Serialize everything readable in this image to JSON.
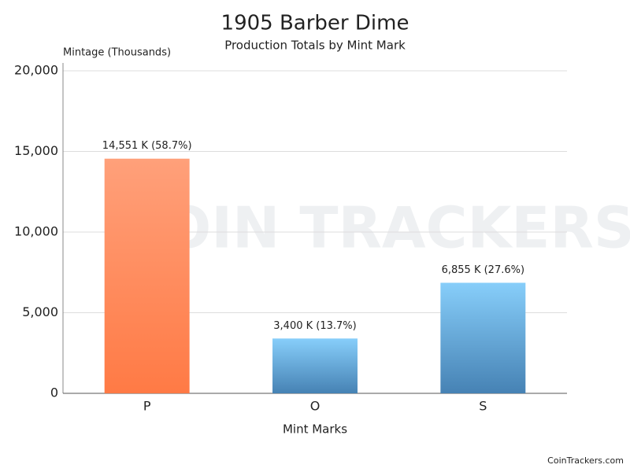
{
  "chart_data": {
    "type": "bar",
    "title": "1905 Barber Dime",
    "subtitle": "Production Totals by Mint Mark",
    "y_label": "Mintage (Thousands)",
    "x_label": "Mint Marks",
    "categories": [
      "P",
      "O",
      "S"
    ],
    "values": [
      14551,
      3400,
      6855
    ],
    "value_labels": [
      "14,551 K (58.7%)",
      "3,400 K (13.7%)",
      "6,855 K (27.6%)"
    ],
    "colors": [
      [
        "#ffa07a",
        "#ff7a45"
      ],
      [
        "#87cefa",
        "#4682b4"
      ],
      [
        "#87cefa",
        "#4682b4"
      ]
    ],
    "ylim": [
      0,
      20000
    ],
    "yticks": [
      0,
      {
        "value": 5000,
        "label": "5,000"
      },
      {
        "value": 10000,
        "label": "10,000"
      },
      {
        "value": 15000,
        "label": "15,000"
      },
      {
        "value": 20000,
        "label": "20,000"
      }
    ],
    "grid": true,
    "watermark": "COIN TRACKERS",
    "credit": "CoinTrackers.com"
  }
}
